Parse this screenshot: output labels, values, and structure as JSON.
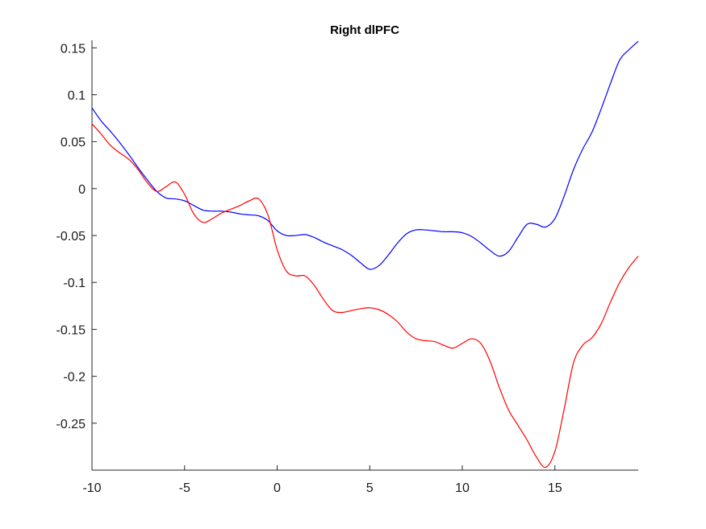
{
  "chart_data": {
    "type": "line",
    "title": "Right dlPFC",
    "xlabel": "",
    "ylabel": "",
    "xlim": [
      -10,
      19.5
    ],
    "ylim": [
      -0.3,
      0.158
    ],
    "x_ticks": [
      -10,
      -5,
      0,
      5,
      10,
      15
    ],
    "x_tick_labels": [
      "-10",
      "-5",
      "0",
      "5",
      "10",
      "15"
    ],
    "y_ticks": [
      0.15,
      0.1,
      0.05,
      0,
      -0.05,
      -0.1,
      -0.15,
      -0.2,
      -0.25
    ],
    "y_tick_labels": [
      "0.15",
      "0.1",
      "0.05",
      "0",
      "-0.05",
      "-0.1",
      "-0.15",
      "-0.2",
      "-0.25"
    ],
    "grid": false,
    "series": [
      {
        "color": "#0000ff",
        "x": [
          -10,
          -9.5,
          -9,
          -8.5,
          -8,
          -7.5,
          -7,
          -6.5,
          -6,
          -5.5,
          -5,
          -4.5,
          -4,
          -3.5,
          -3,
          -2.5,
          -2,
          -1.5,
          -1,
          -0.5,
          0,
          0.5,
          1,
          1.5,
          2,
          2.5,
          3,
          3.5,
          4,
          4.5,
          5,
          5.5,
          6,
          6.5,
          7,
          7.5,
          8,
          8.5,
          9,
          9.5,
          10,
          10.5,
          11,
          11.5,
          12,
          12.5,
          13,
          13.5,
          14,
          14.5,
          15,
          15.5,
          16,
          16.5,
          17,
          17.5,
          18,
          18.5,
          19,
          19.5
        ],
        "y": [
          0.086,
          0.072,
          0.061,
          0.049,
          0.036,
          0.022,
          0.009,
          -0.003,
          -0.01,
          -0.011,
          -0.013,
          -0.018,
          -0.023,
          -0.024,
          -0.024,
          -0.025,
          -0.027,
          -0.028,
          -0.029,
          -0.034,
          -0.045,
          -0.05,
          -0.05,
          -0.049,
          -0.052,
          -0.057,
          -0.061,
          -0.065,
          -0.071,
          -0.079,
          -0.086,
          -0.082,
          -0.071,
          -0.058,
          -0.048,
          -0.044,
          -0.044,
          -0.045,
          -0.046,
          -0.046,
          -0.047,
          -0.051,
          -0.058,
          -0.066,
          -0.072,
          -0.067,
          -0.052,
          -0.038,
          -0.038,
          -0.041,
          -0.032,
          -0.008,
          0.02,
          0.042,
          0.06,
          0.085,
          0.112,
          0.137,
          0.148,
          0.157
        ]
      },
      {
        "color": "#ff0000",
        "x": [
          -10,
          -9.5,
          -9,
          -8.5,
          -8,
          -7.5,
          -7,
          -6.5,
          -6,
          -5.5,
          -5,
          -4.5,
          -4,
          -3.5,
          -3,
          -2.5,
          -2,
          -1.5,
          -1,
          -0.5,
          0,
          0.5,
          1,
          1.5,
          2,
          2.5,
          3,
          3.5,
          4,
          4.5,
          5,
          5.5,
          6,
          6.5,
          7,
          7.5,
          8,
          8.5,
          9,
          9.5,
          10,
          10.5,
          11,
          11.5,
          12,
          12.5,
          13,
          13.5,
          14,
          14.5,
          15,
          15.5,
          16,
          16.5,
          17,
          17.5,
          18,
          18.5,
          19,
          19.5
        ],
        "y": [
          0.069,
          0.058,
          0.046,
          0.038,
          0.031,
          0.02,
          0.006,
          -0.003,
          0.002,
          0.007,
          -0.006,
          -0.027,
          -0.036,
          -0.032,
          -0.026,
          -0.022,
          -0.018,
          -0.013,
          -0.011,
          -0.028,
          -0.065,
          -0.088,
          -0.093,
          -0.093,
          -0.103,
          -0.118,
          -0.13,
          -0.132,
          -0.13,
          -0.128,
          -0.127,
          -0.129,
          -0.134,
          -0.142,
          -0.153,
          -0.16,
          -0.162,
          -0.163,
          -0.167,
          -0.17,
          -0.165,
          -0.16,
          -0.165,
          -0.184,
          -0.212,
          -0.236,
          -0.252,
          -0.268,
          -0.286,
          -0.297,
          -0.28,
          -0.235,
          -0.186,
          -0.167,
          -0.159,
          -0.144,
          -0.121,
          -0.1,
          -0.084,
          -0.072
        ]
      }
    ]
  }
}
